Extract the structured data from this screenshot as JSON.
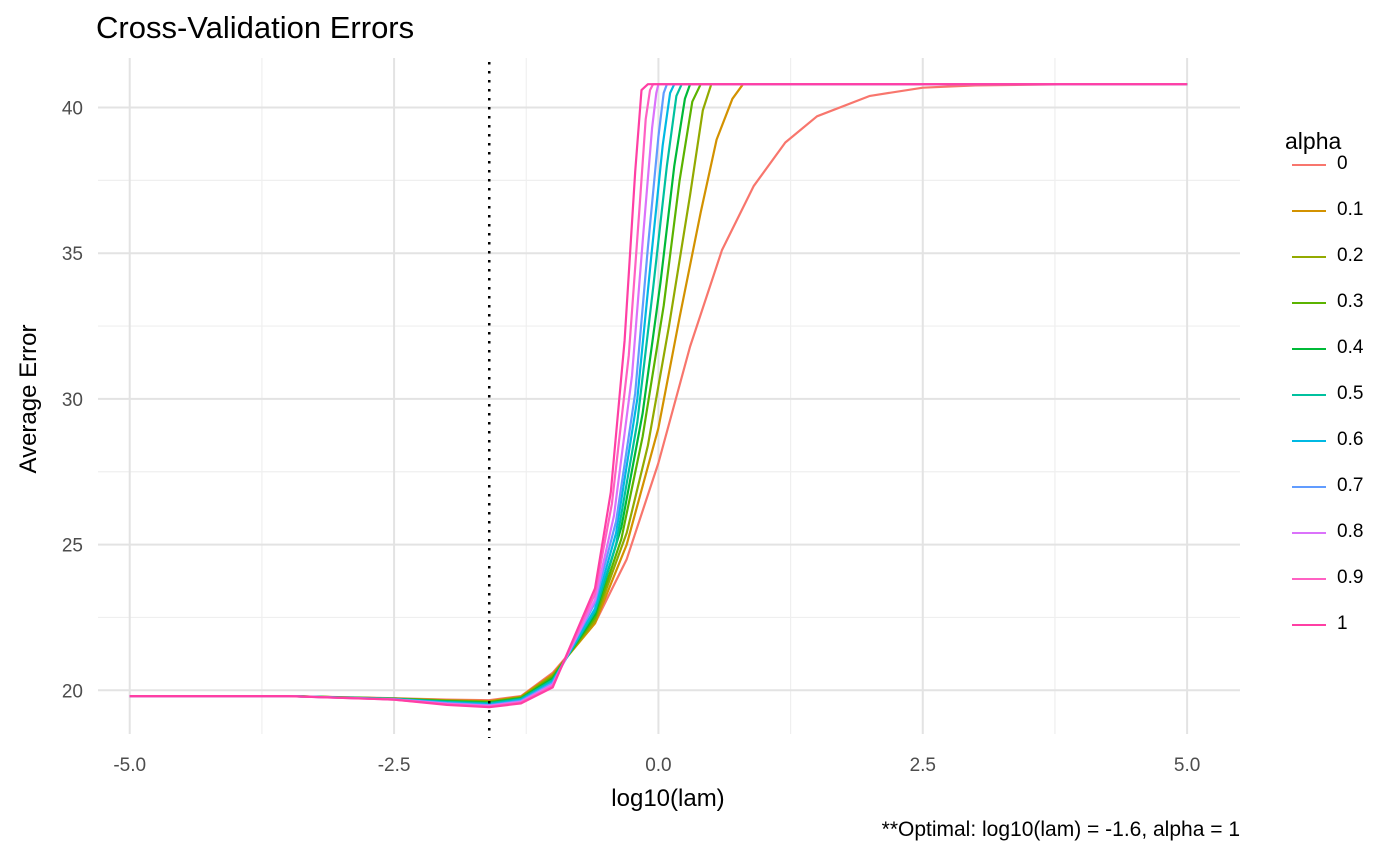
{
  "chart_data": {
    "type": "line",
    "title": "Cross-Validation Errors",
    "xlabel": "log10(lam)",
    "ylabel": "Average Error",
    "xlim": [
      -5.3,
      5.5
    ],
    "ylim": [
      18.5,
      41.7
    ],
    "x_ticks": [
      -5.0,
      -2.5,
      0.0,
      2.5,
      5.0
    ],
    "x_tick_labels": [
      "-5.0",
      "-2.5",
      "0.0",
      "2.5",
      "5.0"
    ],
    "y_ticks": [
      20,
      25,
      30,
      35,
      40
    ],
    "y_tick_labels": [
      "20",
      "25",
      "30",
      "35",
      "40"
    ],
    "grid": true,
    "legend_title": "alpha",
    "legend_position": "right",
    "vline": {
      "x": -1.6,
      "style": "dotted",
      "color": "#000000"
    },
    "annotation": "**Optimal: log10(lam) = -1.6, alpha = 1",
    "series": [
      {
        "name": "0",
        "color": "#F8766D",
        "points": [
          [
            -5,
            19.8
          ],
          [
            -3.5,
            19.8
          ],
          [
            -2.5,
            19.73
          ],
          [
            -2,
            19.68
          ],
          [
            -1.6,
            19.66
          ],
          [
            -1.3,
            19.8
          ],
          [
            -1.0,
            20.6
          ],
          [
            -0.6,
            22.3
          ],
          [
            -0.3,
            24.5
          ],
          [
            0,
            27.8
          ],
          [
            0.3,
            31.8
          ],
          [
            0.6,
            35.1
          ],
          [
            0.9,
            37.3
          ],
          [
            1.2,
            38.8
          ],
          [
            1.5,
            39.7
          ],
          [
            2.0,
            40.4
          ],
          [
            2.5,
            40.68
          ],
          [
            3.0,
            40.76
          ],
          [
            4.0,
            40.8
          ],
          [
            5,
            40.8
          ]
        ]
      },
      {
        "name": "0.1",
        "color": "#D39200",
        "points": [
          [
            -5,
            19.8
          ],
          [
            -3.5,
            19.8
          ],
          [
            -2.5,
            19.72
          ],
          [
            -2,
            19.66
          ],
          [
            -1.6,
            19.63
          ],
          [
            -1.3,
            19.78
          ],
          [
            -1.0,
            20.55
          ],
          [
            -0.6,
            22.3
          ],
          [
            -0.3,
            25.0
          ],
          [
            0,
            29.0
          ],
          [
            0.2,
            32.8
          ],
          [
            0.4,
            36.4
          ],
          [
            0.55,
            38.9
          ],
          [
            0.7,
            40.3
          ],
          [
            0.8,
            40.8
          ],
          [
            5,
            40.8
          ]
        ]
      },
      {
        "name": "0.2",
        "color": "#93AA00",
        "points": [
          [
            -5,
            19.8
          ],
          [
            -3.5,
            19.8
          ],
          [
            -2.5,
            19.72
          ],
          [
            -2,
            19.65
          ],
          [
            -1.6,
            19.61
          ],
          [
            -1.3,
            19.76
          ],
          [
            -1.0,
            20.5
          ],
          [
            -0.6,
            22.4
          ],
          [
            -0.3,
            25.4
          ],
          [
            -0.1,
            28.4
          ],
          [
            0.1,
            32.5
          ],
          [
            0.3,
            37.0
          ],
          [
            0.42,
            39.9
          ],
          [
            0.5,
            40.8
          ],
          [
            5,
            40.8
          ]
        ]
      },
      {
        "name": "0.3",
        "color": "#5BB300",
        "points": [
          [
            -5,
            19.8
          ],
          [
            -3.5,
            19.8
          ],
          [
            -2.5,
            19.71
          ],
          [
            -2,
            19.63
          ],
          [
            -1.6,
            19.59
          ],
          [
            -1.3,
            19.74
          ],
          [
            -1.0,
            20.45
          ],
          [
            -0.6,
            22.5
          ],
          [
            -0.35,
            25.2
          ],
          [
            -0.15,
            28.7
          ],
          [
            0.05,
            33.2
          ],
          [
            0.2,
            37.5
          ],
          [
            0.32,
            40.2
          ],
          [
            0.4,
            40.8
          ],
          [
            5,
            40.8
          ]
        ]
      },
      {
        "name": "0.4",
        "color": "#00BA38",
        "points": [
          [
            -5,
            19.8
          ],
          [
            -3.5,
            19.8
          ],
          [
            -2.5,
            19.71
          ],
          [
            -2,
            19.62
          ],
          [
            -1.6,
            19.57
          ],
          [
            -1.3,
            19.72
          ],
          [
            -1.0,
            20.4
          ],
          [
            -0.6,
            22.6
          ],
          [
            -0.35,
            25.6
          ],
          [
            -0.15,
            29.5
          ],
          [
            0.02,
            34.0
          ],
          [
            0.15,
            38.0
          ],
          [
            0.25,
            40.3
          ],
          [
            0.3,
            40.8
          ],
          [
            5,
            40.8
          ]
        ]
      },
      {
        "name": "0.5",
        "color": "#00C19F",
        "points": [
          [
            -5,
            19.8
          ],
          [
            -3.5,
            19.8
          ],
          [
            -2.5,
            19.7
          ],
          [
            -2,
            19.6
          ],
          [
            -1.6,
            19.55
          ],
          [
            -1.3,
            19.7
          ],
          [
            -1.0,
            20.35
          ],
          [
            -0.6,
            22.7
          ],
          [
            -0.4,
            25.0
          ],
          [
            -0.2,
            29.2
          ],
          [
            -0.05,
            33.8
          ],
          [
            0.08,
            38.0
          ],
          [
            0.17,
            40.4
          ],
          [
            0.22,
            40.8
          ],
          [
            5,
            40.8
          ]
        ]
      },
      {
        "name": "0.6",
        "color": "#00B9E3",
        "points": [
          [
            -5,
            19.8
          ],
          [
            -3.5,
            19.8
          ],
          [
            -2.5,
            19.7
          ],
          [
            -2,
            19.58
          ],
          [
            -1.6,
            19.52
          ],
          [
            -1.3,
            19.67
          ],
          [
            -1.0,
            20.3
          ],
          [
            -0.6,
            22.8
          ],
          [
            -0.4,
            25.4
          ],
          [
            -0.2,
            30.0
          ],
          [
            -0.07,
            34.8
          ],
          [
            0.04,
            38.7
          ],
          [
            0.11,
            40.5
          ],
          [
            0.15,
            40.8
          ],
          [
            5,
            40.8
          ]
        ]
      },
      {
        "name": "0.7",
        "color": "#619CFF",
        "points": [
          [
            -5,
            19.8
          ],
          [
            -3.5,
            19.8
          ],
          [
            -2.5,
            19.69
          ],
          [
            -2,
            19.56
          ],
          [
            -1.6,
            19.49
          ],
          [
            -1.3,
            19.64
          ],
          [
            -1.0,
            20.25
          ],
          [
            -0.6,
            23.0
          ],
          [
            -0.4,
            25.8
          ],
          [
            -0.22,
            30.2
          ],
          [
            -0.1,
            35.2
          ],
          [
            0.0,
            39.0
          ],
          [
            0.05,
            40.5
          ],
          [
            0.08,
            40.8
          ],
          [
            5,
            40.8
          ]
        ]
      },
      {
        "name": "0.8",
        "color": "#DB72FB",
        "points": [
          [
            -5,
            19.8
          ],
          [
            -3.5,
            19.8
          ],
          [
            -2.5,
            19.69
          ],
          [
            -2,
            19.54
          ],
          [
            -1.6,
            19.47
          ],
          [
            -1.3,
            19.61
          ],
          [
            -1.0,
            20.2
          ],
          [
            -0.6,
            23.1
          ],
          [
            -0.42,
            26.0
          ],
          [
            -0.25,
            30.8
          ],
          [
            -0.14,
            35.8
          ],
          [
            -0.06,
            39.3
          ],
          [
            -0.02,
            40.5
          ],
          [
            0.0,
            40.8
          ],
          [
            5,
            40.8
          ]
        ]
      },
      {
        "name": "0.9",
        "color": "#FF61C3",
        "points": [
          [
            -5,
            19.8
          ],
          [
            -3.5,
            19.8
          ],
          [
            -2.5,
            19.68
          ],
          [
            -2,
            19.52
          ],
          [
            -1.6,
            19.44
          ],
          [
            -1.3,
            19.58
          ],
          [
            -1.0,
            20.15
          ],
          [
            -0.6,
            23.3
          ],
          [
            -0.44,
            26.4
          ],
          [
            -0.28,
            31.5
          ],
          [
            -0.18,
            36.5
          ],
          [
            -0.12,
            39.6
          ],
          [
            -0.08,
            40.6
          ],
          [
            -0.05,
            40.8
          ],
          [
            5,
            40.8
          ]
        ]
      },
      {
        "name": "1",
        "color": "#FF3FA4",
        "points": [
          [
            -5,
            19.8
          ],
          [
            -3.5,
            19.8
          ],
          [
            -2.5,
            19.68
          ],
          [
            -2,
            19.5
          ],
          [
            -1.6,
            19.42
          ],
          [
            -1.3,
            19.55
          ],
          [
            -1.0,
            20.1
          ],
          [
            -0.6,
            23.5
          ],
          [
            -0.45,
            26.8
          ],
          [
            -0.32,
            32.0
          ],
          [
            -0.22,
            37.8
          ],
          [
            -0.16,
            40.6
          ],
          [
            -0.1,
            40.8
          ],
          [
            5,
            40.8
          ]
        ]
      }
    ]
  }
}
